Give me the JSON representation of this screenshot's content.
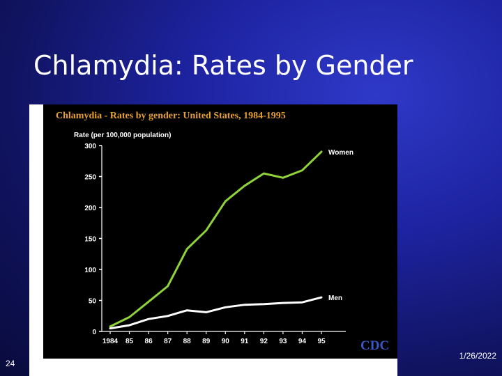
{
  "slide": {
    "title": "Chlamydia: Rates by Gender",
    "number": "24",
    "date": "1/26/2022"
  },
  "colors": {
    "women_line": "#8fd23a",
    "men_line": "#ffffff",
    "chart_bg": "#000000",
    "chart_title": "#e8a030",
    "logo": "#3a57c8"
  },
  "logo": {
    "text": "CDC"
  },
  "chart_data": {
    "type": "line",
    "title": "Chlamydia - Rates by gender: United States, 1984-1995",
    "ylabel": "Rate (per 100,000 population)",
    "xlabel": "",
    "categories": [
      "1984",
      "85",
      "86",
      "87",
      "88",
      "89",
      "90",
      "91",
      "92",
      "93",
      "94",
      "95"
    ],
    "ylim": [
      0,
      300
    ],
    "yticks": [
      0,
      50,
      100,
      150,
      200,
      250,
      300
    ],
    "series": [
      {
        "name": "Women",
        "values": [
          8,
          23,
          48,
          73,
          133,
          163,
          210,
          235,
          255,
          248,
          260,
          290
        ]
      },
      {
        "name": "Men",
        "values": [
          5,
          10,
          20,
          25,
          34,
          31,
          39,
          43,
          44,
          46,
          47,
          55
        ]
      }
    ],
    "grid": false,
    "legend": "direct labels at line ends"
  }
}
